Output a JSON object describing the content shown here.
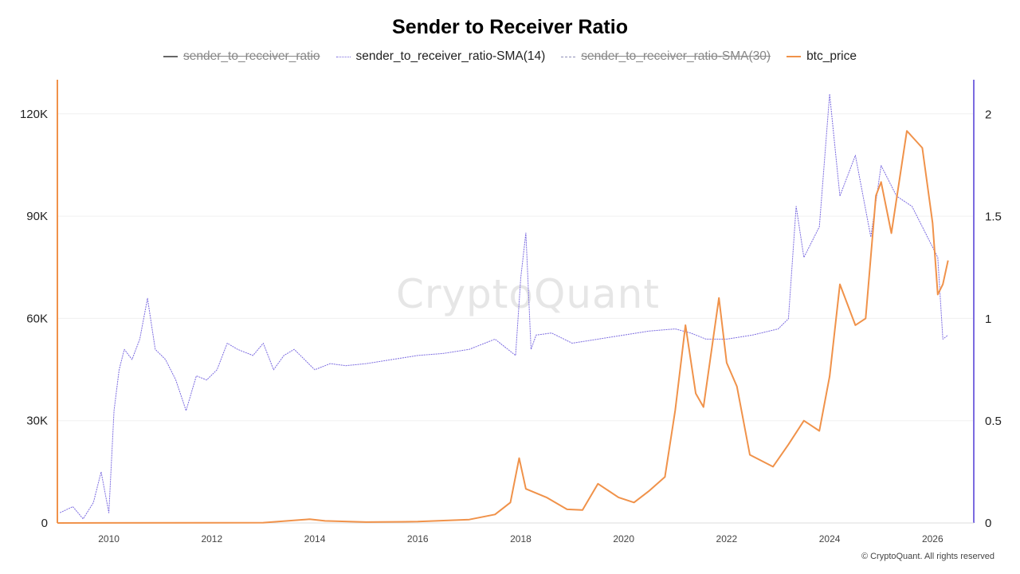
{
  "title": "Sender to Receiver Ratio",
  "legend": [
    {
      "label": "sender_to_receiver_ratio",
      "style": "solid",
      "color": "#666666",
      "hidden": true
    },
    {
      "label": "sender_to_receiver_ratio-SMA(14)",
      "style": "dotted",
      "color": "#7b6be0",
      "hidden": false
    },
    {
      "label": "sender_to_receiver_ratio-SMA(30)",
      "style": "dashed",
      "color": "#7b6be0",
      "hidden": true
    },
    {
      "label": "btc_price",
      "style": "solid",
      "color": "#f0924a",
      "hidden": false
    }
  ],
  "watermark": "CryptoQuant",
  "footer": "© CryptoQuant. All rights reserved",
  "chart_data": {
    "type": "line",
    "x_axis": {
      "ticks": [
        2010,
        2012,
        2014,
        2016,
        2018,
        2020,
        2022,
        2024,
        2026
      ],
      "range": [
        2009.0,
        2026.8
      ]
    },
    "y_left": {
      "ticks": [
        0,
        30000,
        60000,
        90000,
        120000
      ],
      "tick_labels": [
        "0",
        "30K",
        "60K",
        "90K",
        "120K"
      ],
      "range": [
        0,
        130000
      ],
      "axis_color": "#f0924a"
    },
    "y_right": {
      "ticks": [
        0,
        0.5,
        1,
        1.5,
        2
      ],
      "tick_labels": [
        "0",
        "0.5",
        "1",
        "1.5",
        "2"
      ],
      "range": [
        0,
        2.17
      ],
      "axis_color": "#7b6be0"
    },
    "grid": true,
    "series": [
      {
        "name": "sender_to_receiver_ratio-SMA(14)",
        "axis": "right",
        "color": "#7b6be0",
        "x": [
          2009.05,
          2009.3,
          2009.5,
          2009.7,
          2009.85,
          2010.0,
          2010.1,
          2010.2,
          2010.3,
          2010.45,
          2010.6,
          2010.75,
          2010.9,
          2011.1,
          2011.3,
          2011.5,
          2011.7,
          2011.9,
          2012.1,
          2012.3,
          2012.5,
          2012.8,
          2013.0,
          2013.2,
          2013.4,
          2013.6,
          2013.8,
          2014.0,
          2014.3,
          2014.6,
          2015.0,
          2015.5,
          2016.0,
          2016.5,
          2017.0,
          2017.5,
          2017.9,
          2018.0,
          2018.1,
          2018.2,
          2018.3,
          2018.6,
          2019.0,
          2019.5,
          2020.0,
          2020.5,
          2021.0,
          2021.3,
          2021.6,
          2022.0,
          2022.5,
          2023.0,
          2023.2,
          2023.35,
          2023.5,
          2023.8,
          2024.0,
          2024.2,
          2024.5,
          2024.8,
          2025.0,
          2025.3,
          2025.6,
          2025.9,
          2026.1,
          2026.2,
          2026.3
        ],
        "values": [
          0.05,
          0.08,
          0.02,
          0.1,
          0.25,
          0.05,
          0.55,
          0.75,
          0.85,
          0.8,
          0.9,
          1.1,
          0.85,
          0.8,
          0.7,
          0.55,
          0.72,
          0.7,
          0.75,
          0.88,
          0.85,
          0.82,
          0.88,
          0.75,
          0.82,
          0.85,
          0.8,
          0.75,
          0.78,
          0.77,
          0.78,
          0.8,
          0.82,
          0.83,
          0.85,
          0.9,
          0.82,
          1.2,
          1.42,
          0.85,
          0.92,
          0.93,
          0.88,
          0.9,
          0.92,
          0.94,
          0.95,
          0.93,
          0.9,
          0.9,
          0.92,
          0.95,
          1.0,
          1.55,
          1.3,
          1.45,
          2.1,
          1.6,
          1.8,
          1.4,
          1.75,
          1.6,
          1.55,
          1.4,
          1.3,
          0.9,
          0.92
        ]
      },
      {
        "name": "btc_price",
        "axis": "left",
        "color": "#f0924a",
        "x": [
          2009.0,
          2013.0,
          2013.9,
          2014.2,
          2015.0,
          2016.0,
          2017.0,
          2017.5,
          2017.8,
          2017.97,
          2018.1,
          2018.5,
          2018.9,
          2019.2,
          2019.5,
          2019.9,
          2020.2,
          2020.5,
          2020.8,
          2021.0,
          2021.2,
          2021.4,
          2021.55,
          2021.85,
          2022.0,
          2022.2,
          2022.45,
          2022.9,
          2023.2,
          2023.5,
          2023.8,
          2024.0,
          2024.2,
          2024.5,
          2024.7,
          2024.9,
          2025.0,
          2025.2,
          2025.5,
          2025.8,
          2026.0,
          2026.1,
          2026.2,
          2026.3
        ],
        "values": [
          0,
          100,
          1100,
          600,
          250,
          400,
          1000,
          2500,
          6000,
          19000,
          10000,
          7500,
          4000,
          3800,
          11500,
          7500,
          6000,
          9500,
          13500,
          33000,
          58000,
          38000,
          34000,
          66000,
          47000,
          40000,
          20000,
          16500,
          23000,
          30000,
          27000,
          43000,
          70000,
          58000,
          60000,
          96000,
          100000,
          85000,
          115000,
          110000,
          88000,
          67000,
          70000,
          77000
        ]
      }
    ]
  }
}
